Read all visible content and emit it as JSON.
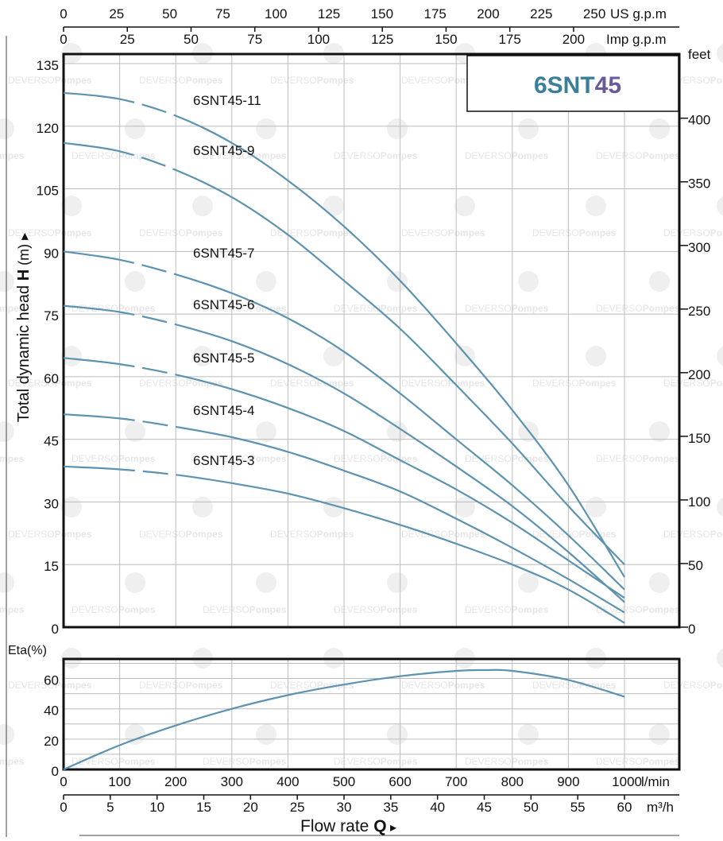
{
  "chart_data": [
    {
      "type": "line",
      "title": "6SNT45",
      "title_parts": [
        "6SNT",
        "45"
      ],
      "title_colors": [
        "#3a7f9a",
        "#6a5a9c"
      ],
      "curve_color": "#5d93b0",
      "ylabel_parts": [
        "Total dynamic head ",
        "H",
        " (m) ▸"
      ],
      "ylim": [
        0,
        135
      ],
      "yticks": [
        0,
        15,
        30,
        45,
        60,
        75,
        90,
        105,
        120,
        135
      ],
      "ytick_labels": [
        "0",
        "15",
        "30",
        "45",
        "60",
        "75",
        "90",
        "105",
        "120",
        "135"
      ],
      "x_units": "l/min",
      "xlim": [
        0,
        1000
      ],
      "grid": true,
      "secondary_y": {
        "label": "feet",
        "ticks": [
          0,
          50,
          100,
          150,
          200,
          250,
          300,
          350,
          400
        ],
        "tick_labels": [
          "0",
          "50",
          "100",
          "150",
          "200",
          "250",
          "300",
          "350",
          "400"
        ]
      },
      "top_x_us": {
        "label": "US g.p.m",
        "ticks": [
          0,
          25,
          50,
          75,
          100,
          125,
          150,
          175,
          200,
          225,
          250
        ],
        "tick_labels": [
          "0",
          "25",
          "50",
          "75",
          "100",
          "125",
          "150",
          "175",
          "200",
          "225",
          "250"
        ]
      },
      "top_x_imp": {
        "label": "Imp g.p.m",
        "ticks": [
          0,
          25,
          50,
          75,
          100,
          125,
          150,
          175,
          200
        ],
        "tick_labels": [
          "0",
          "25",
          "50",
          "75",
          "100",
          "125",
          "150",
          "175",
          "200"
        ]
      },
      "series": [
        {
          "name": "6SNT45-11",
          "x": [
            0,
            100,
            200,
            300,
            400,
            500,
            600,
            700,
            800,
            900,
            1000
          ],
          "values": [
            128,
            126.5,
            122.5,
            116,
            107,
            96,
            83,
            68,
            52,
            34,
            12
          ]
        },
        {
          "name": "6SNT45-9",
          "x": [
            0,
            100,
            200,
            300,
            400,
            500,
            600,
            700,
            800,
            900,
            1000
          ],
          "values": [
            116,
            114,
            109.5,
            103,
            94,
            83,
            71.5,
            58,
            44,
            29,
            15
          ]
        },
        {
          "name": "6SNT45-7",
          "x": [
            0,
            100,
            200,
            300,
            400,
            500,
            600,
            700,
            800,
            900,
            1000
          ],
          "values": [
            90,
            88,
            84.5,
            80,
            74,
            66,
            56,
            45,
            34,
            22,
            9
          ]
        },
        {
          "name": "6SNT45-6",
          "x": [
            0,
            100,
            200,
            300,
            400,
            500,
            600,
            700,
            800,
            900,
            1000
          ],
          "values": [
            77,
            75.5,
            72.5,
            68.5,
            63,
            56,
            47.5,
            38.5,
            29,
            18,
            6
          ]
        },
        {
          "name": "6SNT45-5",
          "x": [
            0,
            100,
            200,
            300,
            400,
            500,
            600,
            700,
            800,
            900,
            1000
          ],
          "values": [
            64.5,
            63,
            60.5,
            57,
            52.5,
            47,
            40,
            33,
            25,
            16,
            7
          ]
        },
        {
          "name": "6SNT45-4",
          "x": [
            0,
            100,
            200,
            300,
            400,
            500,
            600,
            700,
            800,
            900,
            1000
          ],
          "values": [
            51,
            50,
            48,
            45.5,
            42,
            37.5,
            32.5,
            26,
            19,
            11.5,
            3.5
          ]
        },
        {
          "name": "6SNT45-3",
          "x": [
            0,
            100,
            200,
            300,
            400,
            500,
            600,
            700,
            800,
            900,
            1000
          ],
          "values": [
            38.5,
            37.8,
            36.5,
            34.5,
            32,
            28.5,
            24.5,
            20,
            15,
            9,
            1
          ]
        }
      ]
    },
    {
      "type": "line",
      "ylabel": "Eta(%)",
      "ylim": [
        0,
        70
      ],
      "yticks": [
        0,
        20,
        40,
        60
      ],
      "ytick_labels": [
        "0",
        "20",
        "40",
        "60"
      ],
      "xlim": [
        0,
        1000
      ],
      "grid": true,
      "series": [
        {
          "x": [
            0,
            100,
            200,
            300,
            400,
            500,
            600,
            700,
            750,
            800,
            900,
            1000
          ],
          "values": [
            0,
            16,
            29,
            40,
            49,
            56,
            61.5,
            65,
            65.5,
            65,
            59,
            48
          ]
        }
      ]
    }
  ],
  "flow_axis": {
    "lpm_ticks": [
      0,
      100,
      200,
      300,
      400,
      500,
      600,
      700,
      800,
      900,
      1000
    ],
    "lpm_tick_labels": [
      "0",
      "100",
      "200",
      "300",
      "400",
      "500",
      "600",
      "700",
      "800",
      "900",
      "1000"
    ],
    "lpm_unit": "l/min",
    "m3h_ticks": [
      0,
      5,
      10,
      15,
      20,
      25,
      30,
      35,
      40,
      45,
      50,
      55,
      60
    ],
    "m3h_tick_labels": [
      "0",
      "5",
      "10",
      "15",
      "20",
      "25",
      "30",
      "35",
      "40",
      "45",
      "50",
      "55",
      "60"
    ],
    "m3h_unit": "m³/h",
    "label_text": "Flow  rate  ",
    "label_symbol": "Q",
    "label_arrow": "▸"
  },
  "watermark": {
    "text_a": "DEVERSO",
    "text_b": "Pompes"
  }
}
